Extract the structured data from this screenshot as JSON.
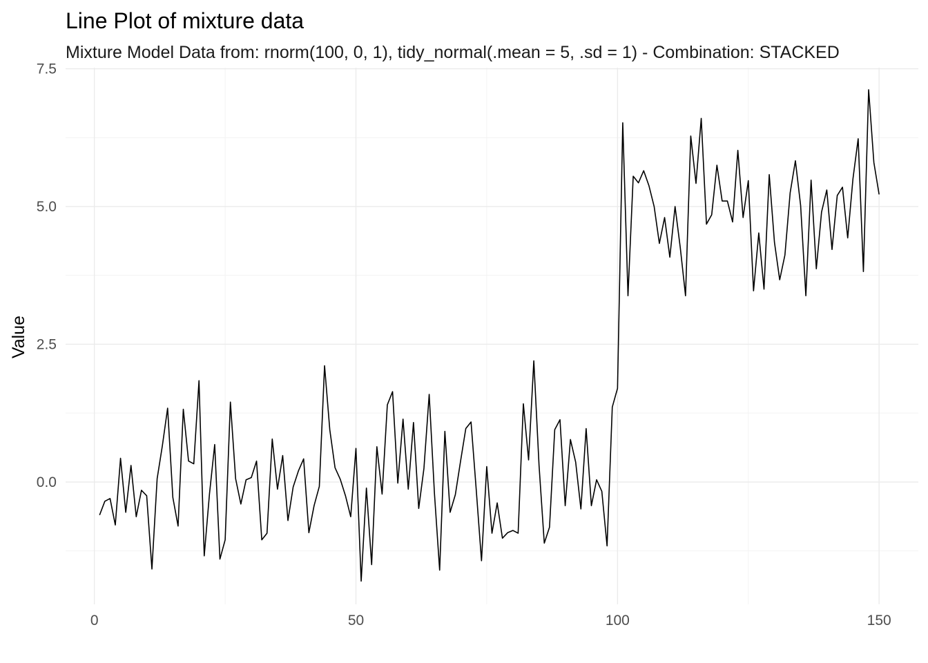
{
  "chart_data": {
    "type": "line",
    "title": "Line Plot of mixture data",
    "subtitle": "Mixture Model Data from: rnorm(100, 0, 1), tidy_normal(.mean = 5, .sd = 1) - Combination: STACKED",
    "xlabel": "",
    "ylabel": "Value",
    "xlim": [
      -5.5,
      157.5
    ],
    "ylim": [
      -2.22,
      7.52
    ],
    "x_ticks": [
      0,
      50,
      100,
      150
    ],
    "x_tick_labels": [
      "0",
      "50",
      "100",
      "150"
    ],
    "y_ticks": [
      0,
      2.5,
      5,
      7.5
    ],
    "y_tick_labels": [
      "0.0",
      "2.5",
      "5.0",
      "7.5"
    ],
    "grid": true,
    "legend": "none",
    "line_color": "#000000",
    "series": [
      {
        "x": [
          1,
          2,
          3,
          4,
          5,
          6,
          7,
          8,
          9,
          10,
          11,
          12,
          13,
          14,
          15,
          16,
          17,
          18,
          19,
          20,
          21,
          22,
          23,
          24,
          25,
          26,
          27,
          28,
          29,
          30,
          31,
          32,
          33,
          34,
          35,
          36,
          37,
          38,
          39,
          40,
          41,
          42,
          43,
          44,
          45,
          46,
          47,
          48,
          49,
          50,
          51,
          52,
          53,
          54,
          55,
          56,
          57,
          58,
          59,
          60,
          61,
          62,
          63,
          64,
          65,
          66,
          67,
          68,
          69,
          70,
          71,
          72,
          73,
          74,
          75,
          76,
          77,
          78,
          79,
          80,
          81,
          82,
          83,
          84,
          85,
          86,
          87,
          88,
          89,
          90,
          91,
          92,
          93,
          94,
          95,
          96,
          97,
          98,
          99,
          100,
          101,
          102,
          103,
          104,
          105,
          106,
          107,
          108,
          109,
          110,
          111,
          112,
          113,
          114,
          115,
          116,
          117,
          118,
          119,
          120,
          121,
          122,
          123,
          124,
          125,
          126,
          127,
          128,
          129,
          130,
          131,
          132,
          133,
          134,
          135,
          136,
          137,
          138,
          139,
          140,
          141,
          142,
          143,
          144,
          145,
          146,
          147,
          148,
          149,
          150
        ],
        "values": [
          -0.6,
          -0.35,
          -0.3,
          -0.78,
          0.43,
          -0.55,
          0.3,
          -0.63,
          -0.15,
          -0.25,
          -1.58,
          0.06,
          0.66,
          1.34,
          -0.28,
          -0.8,
          1.32,
          0.38,
          0.33,
          1.84,
          -1.34,
          -0.22,
          0.68,
          -1.4,
          -1.05,
          1.45,
          0.06,
          -0.4,
          0.04,
          0.08,
          0.38,
          -1.05,
          -0.93,
          0.78,
          -0.13,
          0.48,
          -0.7,
          -0.09,
          0.2,
          0.42,
          -0.92,
          -0.43,
          -0.08,
          2.11,
          0.95,
          0.26,
          0.05,
          -0.25,
          -0.63,
          0.61,
          -1.8,
          -0.11,
          -1.5,
          0.64,
          -0.22,
          1.4,
          1.64,
          -0.02,
          1.14,
          -0.13,
          1.08,
          -0.48,
          0.25,
          1.59,
          -0.2,
          -1.6,
          0.92,
          -0.55,
          -0.23,
          0.38,
          0.97,
          1.09,
          -0.15,
          -1.43,
          0.28,
          -0.93,
          -0.38,
          -1.02,
          -0.92,
          -0.88,
          -0.93,
          1.42,
          0.4,
          2.2,
          0.3,
          -1.11,
          -0.82,
          0.95,
          1.13,
          -0.43,
          0.77,
          0.36,
          -0.49,
          0.97,
          -0.43,
          0.04,
          -0.17,
          -1.16,
          1.36,
          1.7,
          6.52,
          3.38,
          5.55,
          5.43,
          5.65,
          5.38,
          5.0,
          4.33,
          4.8,
          4.08,
          5.0,
          4.25,
          3.38,
          6.28,
          5.42,
          6.6,
          4.68,
          4.85,
          5.75,
          5.1,
          5.1,
          4.72,
          6.02,
          4.8,
          5.47,
          3.47,
          4.52,
          3.5,
          5.58,
          4.35,
          3.67,
          4.12,
          5.25,
          5.83,
          5.02,
          3.38,
          5.48,
          3.87,
          4.9,
          5.3,
          4.22,
          5.2,
          5.35,
          4.43,
          5.5,
          6.23,
          3.82,
          7.12,
          5.8,
          5.22
        ]
      }
    ]
  }
}
